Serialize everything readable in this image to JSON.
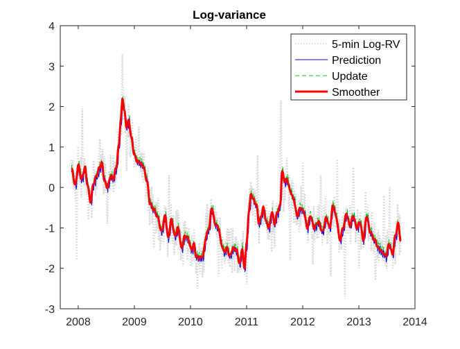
{
  "chart_data": {
    "type": "line",
    "title": "Log-variance",
    "xlabel": "",
    "ylabel": "",
    "xlim": [
      2007.68,
      2014.0
    ],
    "ylim": [
      -3,
      4
    ],
    "x_ticks": [
      2008,
      2009,
      2010,
      2011,
      2012,
      2013,
      2014
    ],
    "x_tick_labels": [
      "2008",
      "2009",
      "2010",
      "2011",
      "2012",
      "2013",
      "2014"
    ],
    "y_ticks": [
      -3,
      -2,
      -1,
      0,
      1,
      2,
      3,
      4
    ],
    "y_tick_labels": [
      "-3",
      "-2",
      "-1",
      "0",
      "1",
      "2",
      "3",
      "4"
    ],
    "grid": false,
    "legend_position": "top-right",
    "smoother_knots": {
      "x": [
        2007.88,
        2007.95,
        2008.0,
        2008.06,
        2008.12,
        2008.16,
        2008.22,
        2008.27,
        2008.33,
        2008.38,
        2008.42,
        2008.47,
        2008.52,
        2008.58,
        2008.62,
        2008.68,
        2008.72,
        2008.76,
        2008.79,
        2008.82,
        2008.86,
        2008.9,
        2008.95,
        2009.0,
        2009.05,
        2009.1,
        2009.15,
        2009.22,
        2009.28,
        2009.35,
        2009.42,
        2009.48,
        2009.55,
        2009.6,
        2009.66,
        2009.72,
        2009.78,
        2009.84,
        2009.9,
        2009.95,
        2010.02,
        2010.06,
        2010.1,
        2010.16,
        2010.22,
        2010.28,
        2010.33,
        2010.38,
        2010.44,
        2010.5,
        2010.55,
        2010.6,
        2010.65,
        2010.7,
        2010.76,
        2010.82,
        2010.88,
        2010.92,
        2010.96,
        2011.0,
        2011.04,
        2011.08,
        2011.12,
        2011.18,
        2011.22,
        2011.26,
        2011.3,
        2011.35,
        2011.4,
        2011.45,
        2011.5,
        2011.55,
        2011.6,
        2011.63,
        2011.68,
        2011.72,
        2011.78,
        2011.84,
        2011.9,
        2011.96,
        2012.02,
        2012.08,
        2012.14,
        2012.2,
        2012.28,
        2012.35,
        2012.42,
        2012.48,
        2012.54,
        2012.6,
        2012.66,
        2012.72,
        2012.78,
        2012.84,
        2012.9,
        2012.96,
        2013.02,
        2013.08,
        2013.14,
        2013.2,
        2013.28,
        2013.35,
        2013.42,
        2013.48,
        2013.54,
        2013.6,
        2013.65,
        2013.7,
        2013.75
      ],
      "y": [
        0.45,
        0.05,
        0.55,
        0.2,
        0.5,
        0.1,
        -0.35,
        0.1,
        0.3,
        0.5,
        0.6,
        0.15,
        0.0,
        0.3,
        0.2,
        0.5,
        1.0,
        1.7,
        2.2,
        1.9,
        1.5,
        1.65,
        1.2,
        0.8,
        0.65,
        0.6,
        0.55,
        0.2,
        -0.4,
        -0.55,
        -0.75,
        -1.1,
        -0.7,
        -1.25,
        -0.8,
        -1.2,
        -1.0,
        -1.5,
        -1.2,
        -1.25,
        -1.55,
        -1.4,
        -1.7,
        -1.75,
        -1.7,
        -1.2,
        -1.0,
        -0.5,
        -0.9,
        -1.0,
        -1.4,
        -1.6,
        -1.5,
        -1.7,
        -1.5,
        -1.55,
        -1.9,
        -1.5,
        -2.0,
        -1.4,
        -0.6,
        -0.15,
        -0.3,
        -0.45,
        -0.9,
        -0.7,
        -0.5,
        -0.85,
        -1.0,
        -0.6,
        -0.9,
        -0.6,
        -0.45,
        0.4,
        0.15,
        0.2,
        -0.1,
        -0.3,
        -0.7,
        -0.5,
        -0.6,
        -1.0,
        -0.7,
        -1.0,
        -0.85,
        -1.1,
        -0.75,
        -1.0,
        -0.45,
        -0.75,
        -1.3,
        -1.0,
        -0.65,
        -0.95,
        -0.7,
        -1.0,
        -0.85,
        -1.3,
        -0.7,
        -1.1,
        -1.3,
        -1.5,
        -1.6,
        -1.7,
        -1.4,
        -1.65,
        -1.2,
        -0.9,
        -1.35
      ]
    },
    "rv_spikes": {
      "x": [
        2007.97,
        2008.07,
        2008.18,
        2008.38,
        2008.52,
        2008.79,
        2008.86,
        2009.08,
        2009.35,
        2009.5,
        2009.62,
        2009.95,
        2010.12,
        2010.3,
        2010.5,
        2010.72,
        2010.88,
        2011.0,
        2011.2,
        2011.45,
        2011.61,
        2011.66,
        2011.78,
        2012.0,
        2012.18,
        2012.32,
        2012.5,
        2012.62,
        2012.75,
        2012.9,
        2013.0,
        2013.12,
        2013.3,
        2013.45,
        2013.55,
        2013.65
      ],
      "y": [
        -1.8,
        1.95,
        -0.8,
        1.2,
        -0.9,
        3.3,
        0.4,
        1.5,
        -1.5,
        -0.8,
        0.3,
        -1.8,
        -2.5,
        -0.4,
        -2.2,
        -1.0,
        -2.1,
        -2.4,
        0.8,
        -1.6,
        2.15,
        -0.6,
        -1.8,
        0.6,
        -1.9,
        0.3,
        -2.2,
        0.7,
        -2.7,
        0.5,
        -2.0,
        -0.1,
        -2.3,
        -0.2,
        0.0,
        -1.9
      ]
    },
    "series": [
      {
        "name": "5-min Log-RV",
        "color": "#d9d9d9",
        "style": "dotted",
        "stroke_width": 2.5
      },
      {
        "name": "Prediction",
        "color": "#0000ff",
        "style": "solid",
        "stroke_width": 1
      },
      {
        "name": "Update",
        "color": "#00cc00",
        "style": "dashed",
        "stroke_width": 1
      },
      {
        "name": "Smoother",
        "color": "#ff0000",
        "style": "solid",
        "stroke_width": 3
      }
    ]
  }
}
